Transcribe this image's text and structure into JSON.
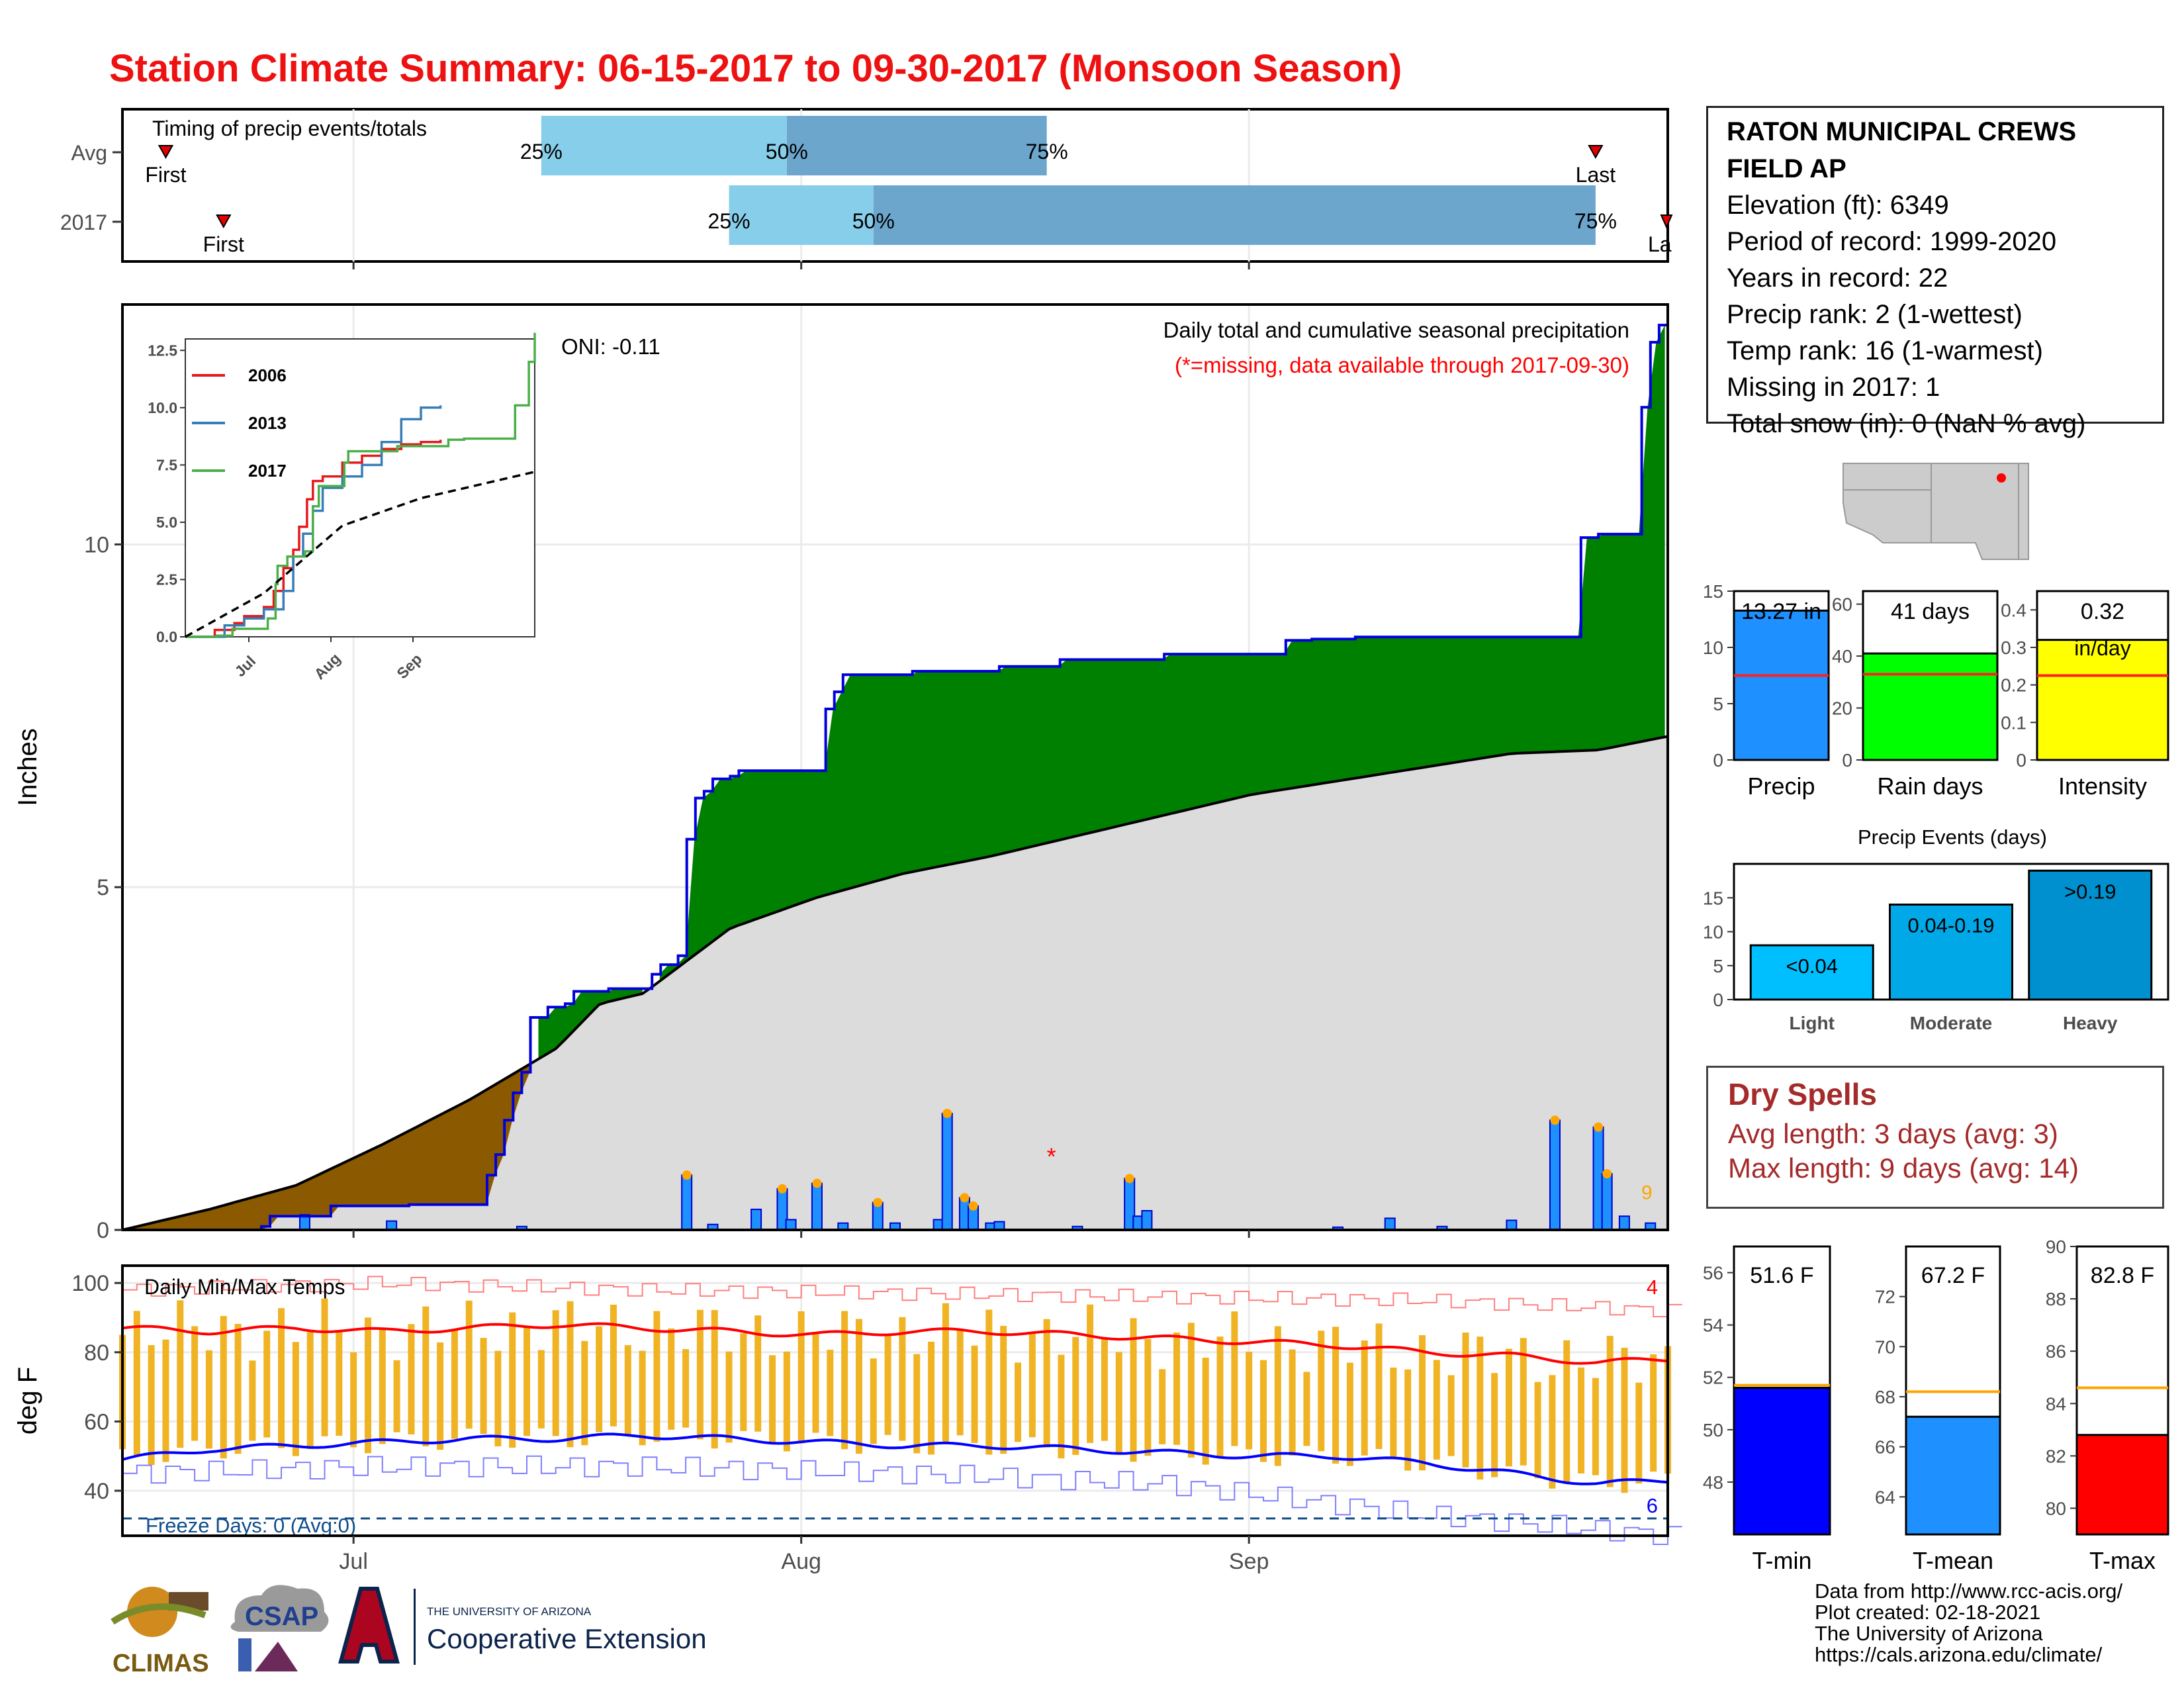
{
  "header": {
    "title": "Station Climate Summary: 06-15-2017 to 09-30-2017 (Monsoon Season)"
  },
  "station": {
    "name_line1": "RATON MUNICIPAL CREWS",
    "name_line2": "FIELD AP",
    "rows": [
      "Elevation (ft): 6349",
      "Period of record: 1999-2020",
      "Years in record: 22",
      "Precip rank: 2 (1-wettest)",
      "Temp rank: 16 (1-warmest)",
      "Missing in 2017: 1",
      "Total snow (in): 0 (NaN % avg)"
    ]
  },
  "dry_spells": {
    "heading": "Dry Spells",
    "avg_length": "Avg length: 3 days (avg: 3)",
    "max_length": "Max length: 9 days (avg: 14)"
  },
  "credits": [
    "Data from http://www.rcc-acis.org/",
    "Plot created: 02-18-2021",
    "The University of Arizona",
    "https://cals.arizona.edu/climate/"
  ],
  "logos": {
    "climas": "CLIMAS",
    "csap": "CSAP",
    "ua_small": "THE UNIVERSITY OF ARIZONA",
    "ua_big": "Cooperative Extension"
  },
  "colors": {
    "title": "#ee1111",
    "above_avg_fill": "#008000",
    "below_avg_fill": "#8b5a00",
    "avg_fill": "#dcdcdc",
    "daily_bar": "#1e90ff",
    "tmax": "#ff0000",
    "tmin": "#0000ff",
    "trange": "#f0b323"
  },
  "chart_data": [
    {
      "id": "timing",
      "type": "bar",
      "title": "Timing of precip events/totals",
      "rows": [
        {
          "label": "Avg",
          "first": "06-18",
          "q25": "07-14",
          "q50": "07-31",
          "q75": "08-18",
          "last": "09-25",
          "first_label": "First",
          "last_label": "Last"
        },
        {
          "label": "2017",
          "first": "06-22",
          "q25": "07-27",
          "q50": "08-06",
          "q75": "09-25",
          "last": "10-01",
          "first_label": "First",
          "last_label": "Last"
        }
      ],
      "pct_labels": [
        "25%",
        "50%",
        "75%"
      ]
    },
    {
      "id": "precip",
      "type": "area",
      "title": "Daily total and cumulative seasonal precipitation",
      "subtitle": "(*=missing, data available through 2017-09-30)",
      "annotation": "ONI: -0.11",
      "ylabel": "Inches",
      "ylim": [
        0,
        13.5
      ],
      "yticks": [
        0,
        5,
        10
      ],
      "xticks": [
        "Jul",
        "Aug",
        "Sep"
      ],
      "start_date": "2017-06-15",
      "end_date": "2017-09-30",
      "cumulative_2017": [
        [
          0,
          0
        ],
        [
          16,
          0.05
        ],
        [
          17,
          0.2
        ],
        [
          24,
          0.35
        ],
        [
          33,
          0.37
        ],
        [
          42,
          0.8
        ],
        [
          43,
          1.1
        ],
        [
          44,
          1.6
        ],
        [
          45,
          2.0
        ],
        [
          46,
          2.3
        ],
        [
          47,
          3.1
        ],
        [
          49,
          3.25
        ],
        [
          51,
          3.3
        ],
        [
          52,
          3.48
        ],
        [
          56,
          3.52
        ],
        [
          61,
          3.73
        ],
        [
          62,
          3.87
        ],
        [
          64,
          4.0
        ],
        [
          65,
          5.7
        ],
        [
          66,
          6.3
        ],
        [
          67,
          6.4
        ],
        [
          68,
          6.58
        ],
        [
          70,
          6.62
        ],
        [
          71,
          6.7
        ],
        [
          80,
          6.7
        ],
        [
          81,
          7.6
        ],
        [
          82,
          7.85
        ],
        [
          83,
          8.1
        ],
        [
          90,
          8.1
        ],
        [
          91,
          8.15
        ],
        [
          101,
          8.22
        ],
        [
          108,
          8.32
        ],
        [
          120,
          8.4
        ],
        [
          134,
          8.6
        ],
        [
          137,
          8.62
        ],
        [
          142,
          8.65
        ],
        [
          168,
          10.1
        ],
        [
          170,
          10.15
        ],
        [
          175,
          12.0
        ],
        [
          176,
          12.95
        ],
        [
          177,
          13.2
        ],
        [
          178,
          13.27
        ]
      ],
      "average_cumulative": [
        [
          0,
          0
        ],
        [
          10,
          0.3
        ],
        [
          20,
          0.65
        ],
        [
          30,
          1.25
        ],
        [
          40,
          1.9
        ],
        [
          50,
          2.65
        ],
        [
          55,
          3.3
        ],
        [
          60,
          3.45
        ],
        [
          70,
          4.4
        ],
        [
          80,
          4.85
        ],
        [
          90,
          5.2
        ],
        [
          100,
          5.45
        ],
        [
          110,
          5.75
        ],
        [
          120,
          6.05
        ],
        [
          130,
          6.35
        ],
        [
          140,
          6.55
        ],
        [
          150,
          6.75
        ],
        [
          160,
          6.95
        ],
        [
          170,
          7.0
        ],
        [
          178,
          7.2
        ]
      ],
      "daily": [
        [
          21,
          0.22
        ],
        [
          31,
          0.13
        ],
        [
          46,
          0.05
        ],
        [
          65,
          0.8
        ],
        [
          68,
          0.08
        ],
        [
          73,
          0.3
        ],
        [
          76,
          0.6
        ],
        [
          77,
          0.15
        ],
        [
          80,
          0.68
        ],
        [
          83,
          0.1
        ],
        [
          87,
          0.4
        ],
        [
          89,
          0.1
        ],
        [
          94,
          0.15
        ],
        [
          95,
          1.7
        ],
        [
          97,
          0.47
        ],
        [
          98,
          0.35
        ],
        [
          100,
          0.1
        ],
        [
          101,
          0.12
        ],
        [
          110,
          0.05
        ],
        [
          116,
          0.75
        ],
        [
          117,
          0.2
        ],
        [
          118,
          0.28
        ],
        [
          140,
          0.04
        ],
        [
          146,
          0.17
        ],
        [
          152,
          0.05
        ],
        [
          160,
          0.14
        ],
        [
          165,
          1.6
        ],
        [
          170,
          1.5
        ],
        [
          171,
          0.82
        ],
        [
          173,
          0.2
        ],
        [
          176,
          0.1
        ]
      ],
      "missing_day": 107,
      "missing_label": "*",
      "end_label": "9"
    },
    {
      "id": "precip_inset",
      "type": "line",
      "ylim": [
        0,
        13
      ],
      "yticks": [
        0.0,
        2.5,
        5.0,
        7.5,
        10.0,
        12.5
      ],
      "xticks": [
        "Jul",
        "Aug",
        "Sep"
      ],
      "series": [
        {
          "name": "2006",
          "color": "#e41a1c",
          "values": [
            [
              0,
              0
            ],
            [
              15,
              0.3
            ],
            [
              25,
              0.6
            ],
            [
              30,
              0.9
            ],
            [
              40,
              1.3
            ],
            [
              45,
              2.0
            ],
            [
              50,
              3.0
            ],
            [
              55,
              3.8
            ],
            [
              58,
              4.8
            ],
            [
              62,
              6.0
            ],
            [
              65,
              6.8
            ],
            [
              70,
              7.0
            ],
            [
              80,
              7.6
            ],
            [
              90,
              7.9
            ],
            [
              100,
              8.2
            ],
            [
              110,
              8.4
            ],
            [
              120,
              8.5
            ],
            [
              130,
              8.6
            ]
          ]
        },
        {
          "name": "2013",
          "color": "#377eb8",
          "values": [
            [
              0,
              0
            ],
            [
              20,
              0.5
            ],
            [
              30,
              0.8
            ],
            [
              40,
              1.2
            ],
            [
              50,
              2.0
            ],
            [
              55,
              3.5
            ],
            [
              60,
              4.5
            ],
            [
              65,
              5.5
            ],
            [
              70,
              6.5
            ],
            [
              80,
              7.0
            ],
            [
              90,
              7.5
            ],
            [
              100,
              8.5
            ],
            [
              110,
              9.5
            ],
            [
              120,
              10.0
            ],
            [
              130,
              10.1
            ]
          ]
        },
        {
          "name": "2017",
          "color": "#4daf4a",
          "values": [
            [
              0,
              0
            ],
            [
              16,
              0.05
            ],
            [
              24,
              0.35
            ],
            [
              42,
              0.8
            ],
            [
              46,
              2.3
            ],
            [
              47,
              3.1
            ],
            [
              52,
              3.5
            ],
            [
              61,
              3.73
            ],
            [
              65,
              5.7
            ],
            [
              68,
              6.58
            ],
            [
              81,
              7.6
            ],
            [
              83,
              8.1
            ],
            [
              108,
              8.32
            ],
            [
              134,
              8.6
            ],
            [
              142,
              8.65
            ],
            [
              168,
              10.1
            ],
            [
              175,
              12.0
            ],
            [
              178,
              13.27
            ]
          ]
        },
        {
          "name": "avg",
          "color": "#000000",
          "dashed": true,
          "values": [
            [
              0,
              0
            ],
            [
              40,
              1.9
            ],
            [
              80,
              4.85
            ],
            [
              120,
              6.05
            ],
            [
              178,
              7.2
            ]
          ]
        }
      ]
    },
    {
      "id": "temps",
      "type": "line",
      "title": "Daily Min/Max Temps",
      "ylabel": "deg F",
      "ylim": [
        27,
        105
      ],
      "yticks": [
        40,
        60,
        80,
        100
      ],
      "xticks": [
        "Jul",
        "Aug",
        "Sep"
      ],
      "freeze_line": 32,
      "freeze_label": "Freeze Days: 0 (Avg:0)",
      "right_top_label": "4",
      "right_bottom_label": "6",
      "tmax_smooth": [
        [
          0,
          87
        ],
        [
          10,
          86
        ],
        [
          20,
          87
        ],
        [
          30,
          86
        ],
        [
          40,
          87
        ],
        [
          50,
          88
        ],
        [
          60,
          87
        ],
        [
          70,
          86
        ],
        [
          80,
          85
        ],
        [
          90,
          86
        ],
        [
          100,
          86
        ],
        [
          110,
          85
        ],
        [
          120,
          84
        ],
        [
          130,
          83
        ],
        [
          140,
          82
        ],
        [
          150,
          80
        ],
        [
          160,
          79
        ],
        [
          170,
          77
        ],
        [
          178,
          78
        ]
      ],
      "tmin_smooth": [
        [
          0,
          49
        ],
        [
          10,
          52
        ],
        [
          20,
          53
        ],
        [
          30,
          54
        ],
        [
          40,
          55
        ],
        [
          50,
          55
        ],
        [
          60,
          56
        ],
        [
          70,
          55
        ],
        [
          80,
          54
        ],
        [
          90,
          53
        ],
        [
          100,
          53
        ],
        [
          110,
          52
        ],
        [
          120,
          51
        ],
        [
          130,
          50
        ],
        [
          140,
          50
        ],
        [
          150,
          48
        ],
        [
          160,
          45
        ],
        [
          170,
          42
        ],
        [
          178,
          43
        ]
      ],
      "record_high": [
        [
          0,
          98
        ],
        [
          30,
          100
        ],
        [
          60,
          98
        ],
        [
          90,
          97
        ],
        [
          120,
          96
        ],
        [
          150,
          95
        ],
        [
          178,
          92
        ]
      ],
      "record_low": [
        [
          0,
          45
        ],
        [
          30,
          47
        ],
        [
          60,
          47
        ],
        [
          90,
          45
        ],
        [
          120,
          42
        ],
        [
          150,
          33
        ],
        [
          178,
          27
        ]
      ]
    },
    {
      "id": "summary_bars",
      "type": "bar",
      "panels": [
        {
          "name": "Precip",
          "value": 13.27,
          "value_label": "13.27 in",
          "avg": 7.5,
          "ylim": [
            0,
            15
          ],
          "yticks": [
            0,
            5,
            10,
            15
          ],
          "color": "#1e90ff"
        },
        {
          "name": "Rain days",
          "value": 41,
          "value_label": "41 days",
          "avg": 33,
          "ylim": [
            0,
            65
          ],
          "yticks": [
            0,
            20,
            40,
            60
          ],
          "color": "#00ff00"
        },
        {
          "name": "Intensity",
          "value": 0.32,
          "value_label": "0.32",
          "unit_label": "in/day",
          "avg": 0.225,
          "ylim": [
            0,
            0.45
          ],
          "yticks": [
            0.0,
            0.1,
            0.2,
            0.3,
            0.4
          ],
          "color": "#ffff00"
        }
      ]
    },
    {
      "id": "precip_events",
      "type": "bar",
      "title": "Precip Events (days)",
      "categories": [
        "Light",
        "Moderate",
        "Heavy"
      ],
      "values": [
        8,
        14,
        19
      ],
      "bar_labels": [
        "<0.04",
        "0.04-0.19",
        ">0.19"
      ],
      "ylim": [
        0,
        20
      ],
      "yticks": [
        0,
        5,
        10,
        15
      ],
      "colors": [
        "#00bfff",
        "#00a8e8",
        "#0090d0"
      ]
    },
    {
      "id": "temp_summary",
      "type": "bar",
      "panels": [
        {
          "name": "T-min",
          "value": 51.6,
          "value_label": "51.6 F",
          "avg": 51.7,
          "ylim": [
            46,
            57
          ],
          "yticks": [
            48,
            50,
            52,
            54,
            56
          ],
          "color": "#0000ff"
        },
        {
          "name": "T-mean",
          "value": 67.2,
          "value_label": "67.2 F",
          "avg": 68.2,
          "ylim": [
            62.5,
            74
          ],
          "yticks": [
            64,
            66,
            68,
            70,
            72
          ],
          "color": "#1e90ff"
        },
        {
          "name": "T-max",
          "value": 82.8,
          "value_label": "82.8 F",
          "avg": 84.6,
          "ylim": [
            79,
            90
          ],
          "yticks": [
            80,
            82,
            84,
            86,
            88,
            90
          ],
          "color": "#ff0000"
        }
      ]
    }
  ]
}
